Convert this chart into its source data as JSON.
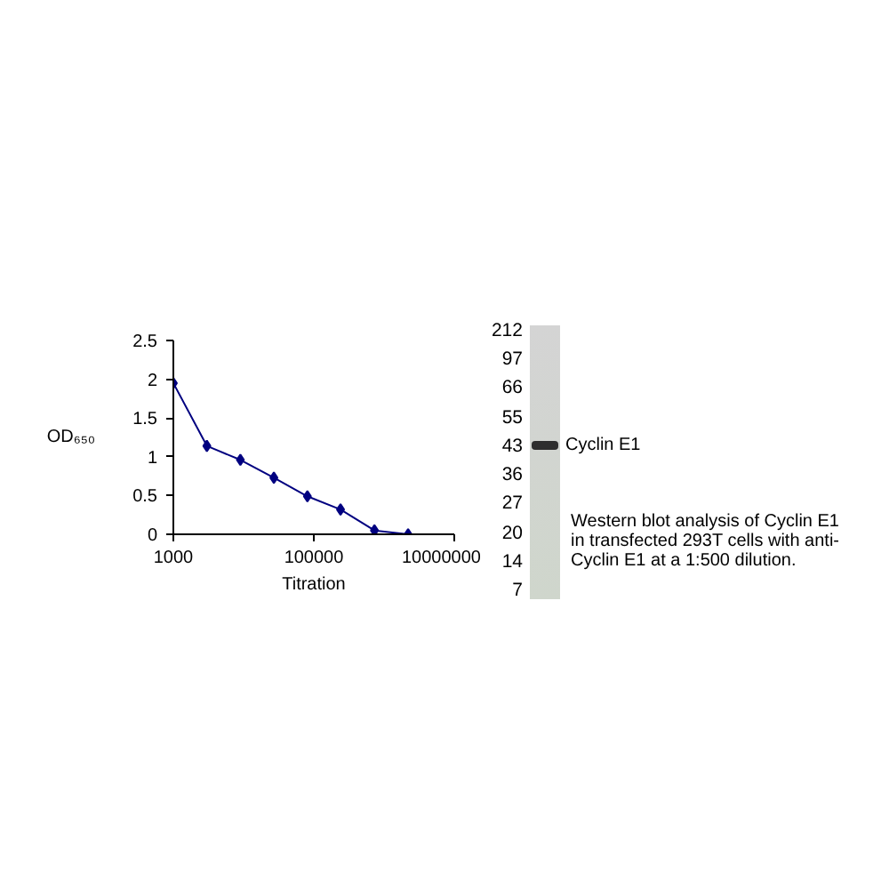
{
  "chart_data": [
    {
      "type": "line",
      "xlabel": "Titration",
      "ylabel": "OD₆₅₀",
      "x": [
        1000,
        3000,
        9000,
        27000,
        81000,
        240000,
        730000,
        2200000
      ],
      "series": [
        {
          "color": "#000080",
          "values": [
            1.95,
            1.14,
            0.96,
            0.73,
            0.49,
            0.32,
            0.05,
            0.0
          ]
        }
      ],
      "log": "x",
      "xlim": [
        1000,
        10000000
      ],
      "ylim": [
        0,
        2.5
      ],
      "xticks": [
        1000,
        100000,
        10000000
      ],
      "yticks": [
        0,
        0.5,
        1,
        1.5,
        2,
        2.5
      ],
      "marker": "diamond",
      "line_style": "solid"
    },
    {
      "type": "other",
      "y_categories": [
        "212",
        "97",
        "66",
        "55",
        "43",
        "36",
        "27",
        "20",
        "14",
        "7"
      ],
      "annotations": [
        {
          "text": "Cyclin E1",
          "y": "43"
        },
        "Western blot analysis of Cyclin E1 in transfected 293T cells with anti-Cyclin E1 at a 1:500 dilution."
      ]
    }
  ]
}
